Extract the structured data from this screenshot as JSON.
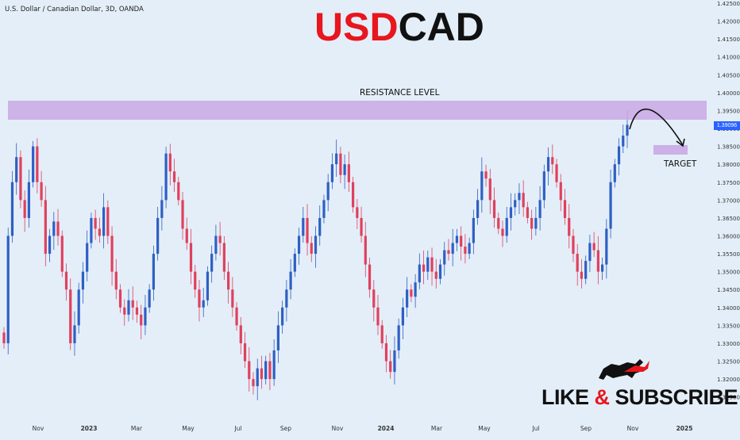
{
  "header": {
    "pair_description": "U.S. Dollar / Canadian Dollar, 3D, OANDA",
    "title_part1": "USD",
    "title_part2": "CAD"
  },
  "annotations": {
    "resistance_label": "RESISTANCE LEVEL",
    "target_label": "TARGET"
  },
  "price_axis": {
    "current_price": "1.39096",
    "ticks": [
      "1.42500",
      "1.42000",
      "1.41500",
      "1.41000",
      "1.40500",
      "1.40000",
      "1.39500",
      "1.39000",
      "1.38500",
      "1.38000",
      "1.37500",
      "1.37000",
      "1.36500",
      "1.36000",
      "1.35500",
      "1.35000",
      "1.34500",
      "1.34000",
      "1.33500",
      "1.33000",
      "1.32500",
      "1.32000",
      "1.31500"
    ]
  },
  "time_axis": {
    "labels": [
      "Nov",
      "2023",
      "Mar",
      "May",
      "Jul",
      "Sep",
      "Nov",
      "2024",
      "Mar",
      "May",
      "Jul",
      "Sep",
      "Nov",
      "2025"
    ]
  },
  "cta": {
    "part1": "LIKE ",
    "amp": "&",
    "part2": " SUBSCRIBE"
  },
  "colors": {
    "up": "#2f5fc4",
    "down": "#e0405e",
    "background": "#e3eef8",
    "zone": "#c9a8e4",
    "accent_red": "#e8161d",
    "price_tag": "#2962ff"
  },
  "chart_data": {
    "type": "candlestick",
    "symbol": "USDCAD",
    "timeframe": "3D",
    "source": "OANDA",
    "ylim": [
      1.3125,
      1.425
    ],
    "resistance_zone": [
      1.393,
      1.398
    ],
    "target_zone": [
      1.3835,
      1.386
    ],
    "last_price": 1.39096,
    "closes": [
      1.33,
      1.36,
      1.375,
      1.382,
      1.37,
      1.365,
      1.375,
      1.385,
      1.375,
      1.37,
      1.355,
      1.36,
      1.364,
      1.36,
      1.35,
      1.345,
      1.33,
      1.335,
      1.345,
      1.35,
      1.358,
      1.365,
      1.362,
      1.36,
      1.368,
      1.36,
      1.35,
      1.345,
      1.34,
      1.338,
      1.342,
      1.34,
      1.338,
      1.335,
      1.34,
      1.345,
      1.355,
      1.365,
      1.37,
      1.383,
      1.378,
      1.375,
      1.37,
      1.362,
      1.358,
      1.35,
      1.345,
      1.34,
      1.342,
      1.35,
      1.355,
      1.36,
      1.358,
      1.35,
      1.345,
      1.34,
      1.335,
      1.33,
      1.325,
      1.32,
      1.318,
      1.323,
      1.32,
      1.325,
      1.32,
      1.328,
      1.335,
      1.34,
      1.345,
      1.35,
      1.355,
      1.36,
      1.365,
      1.358,
      1.355,
      1.36,
      1.365,
      1.37,
      1.375,
      1.38,
      1.383,
      1.377,
      1.38,
      1.375,
      1.368,
      1.365,
      1.36,
      1.352,
      1.345,
      1.34,
      1.335,
      1.33,
      1.325,
      1.322,
      1.328,
      1.335,
      1.34,
      1.345,
      1.343,
      1.347,
      1.352,
      1.35,
      1.354,
      1.35,
      1.348,
      1.352,
      1.356,
      1.355,
      1.358,
      1.36,
      1.357,
      1.355,
      1.358,
      1.365,
      1.37,
      1.378,
      1.376,
      1.37,
      1.365,
      1.362,
      1.36,
      1.365,
      1.368,
      1.37,
      1.372,
      1.368,
      1.365,
      1.362,
      1.365,
      1.37,
      1.378,
      1.382,
      1.38,
      1.375,
      1.37,
      1.365,
      1.36,
      1.355,
      1.35,
      1.348,
      1.353,
      1.358,
      1.356,
      1.35,
      1.352,
      1.362,
      1.375,
      1.38,
      1.385,
      1.388,
      1.391
    ]
  }
}
